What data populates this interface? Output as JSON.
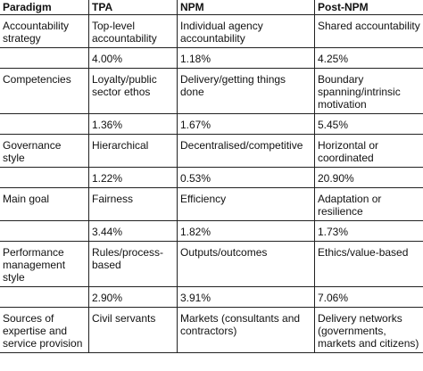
{
  "table": {
    "headers": [
      "Paradigm",
      "TPA",
      "NPM",
      "Post-NPM"
    ],
    "rows": [
      {
        "type": "label",
        "cells": [
          "Accountability strategy",
          "Top-level accountability",
          "Individual agency accountability",
          "Shared accountability"
        ]
      },
      {
        "type": "pct",
        "cells": [
          "",
          "4.00%",
          "1.18%",
          "4.25%"
        ]
      },
      {
        "type": "label",
        "cells": [
          "Competencies",
          "Loyalty/public sector ethos",
          "Delivery/getting things done",
          "Boundary spanning/intrinsic motivation"
        ]
      },
      {
        "type": "pct",
        "cells": [
          "",
          "1.36%",
          "1.67%",
          "5.45%"
        ]
      },
      {
        "type": "label",
        "cells": [
          "Governance style",
          "Hierarchical",
          "Decentralised/competitive",
          "Horizontal or coordinated"
        ]
      },
      {
        "type": "pct",
        "cells": [
          "",
          "1.22%",
          "0.53%",
          "20.90%"
        ]
      },
      {
        "type": "label",
        "cells": [
          "Main goal",
          "Fairness",
          "Efficiency",
          "Adaptation or resilience"
        ]
      },
      {
        "type": "pct",
        "cells": [
          "",
          "3.44%",
          "1.82%",
          "1.73%"
        ]
      },
      {
        "type": "label",
        "cells": [
          "Performance management style",
          "Rules/process-based",
          "Outputs/outcomes",
          "Ethics/value-based"
        ]
      },
      {
        "type": "pct",
        "cells": [
          "",
          "2.90%",
          "3.91%",
          "7.06%"
        ]
      },
      {
        "type": "label",
        "cells": [
          "Sources of expertise and service provision",
          "Civil servants",
          "Markets (consultants and contractors)",
          "Delivery networks (governments, markets and citizens)"
        ]
      }
    ]
  }
}
